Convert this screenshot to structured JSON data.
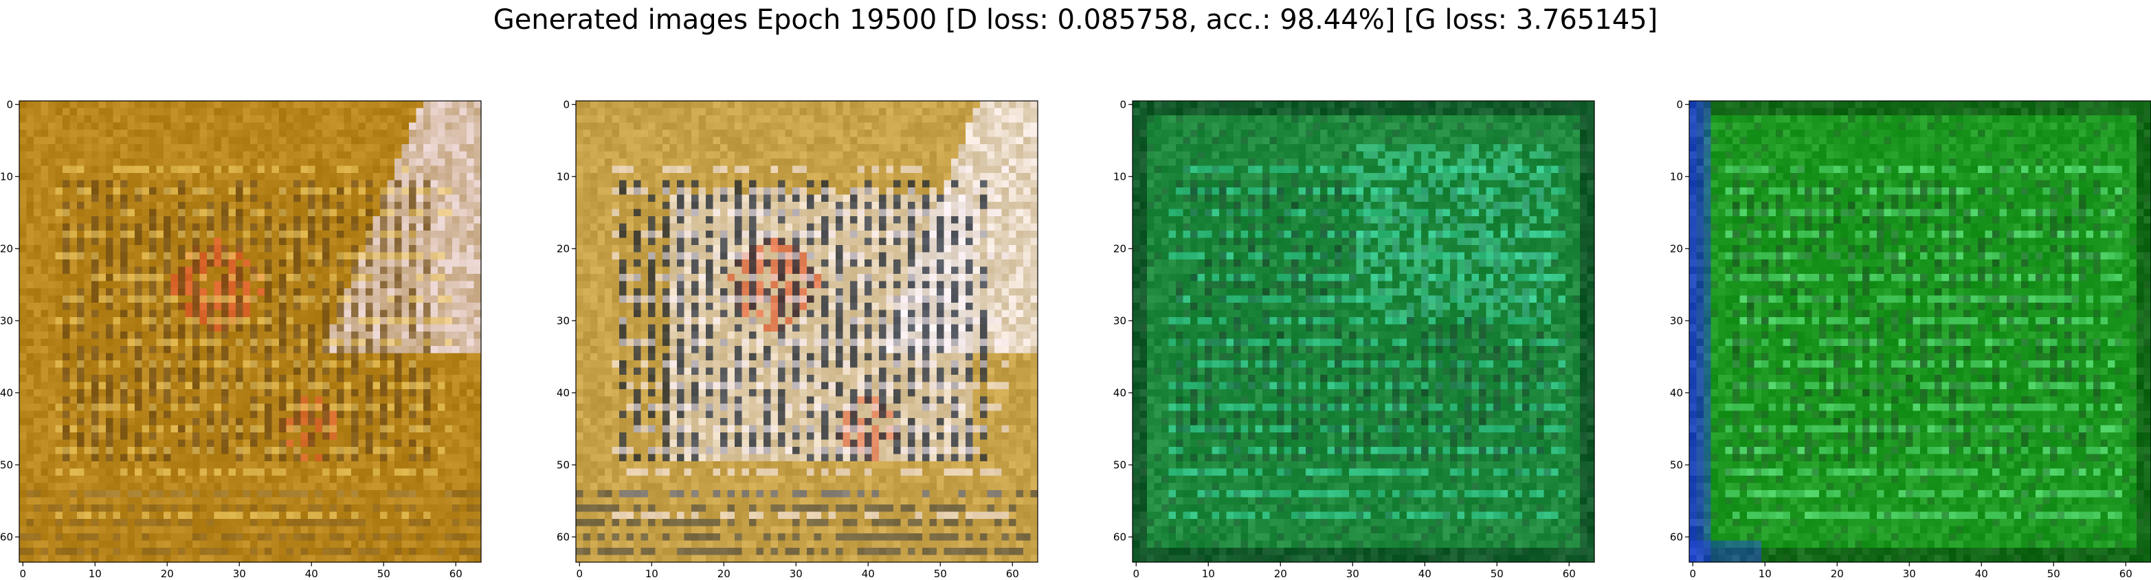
{
  "figure": {
    "suptitle": "Generated images Epoch 19500 [D loss: 0.085758, acc.: 98.44%] [G loss: 3.765145]"
  },
  "chart_data": [
    {
      "type": "heatmap",
      "xlim": [
        -0.5,
        63.5
      ],
      "ylim": [
        63.5,
        -0.5
      ],
      "xticks": [
        0,
        10,
        20,
        30,
        40,
        50,
        60
      ],
      "yticks": [
        0,
        10,
        20,
        30,
        40,
        50,
        60
      ],
      "grid": false,
      "colors": {
        "base": "#b8861c",
        "light": "#e6c15a",
        "dark": "#6e4a12",
        "accent": "#e2512a",
        "highlight": "#e8d9ea"
      }
    },
    {
      "type": "heatmap",
      "xlim": [
        -0.5,
        63.5
      ],
      "ylim": [
        63.5,
        -0.5
      ],
      "xticks": [
        0,
        10,
        20,
        30,
        40,
        50,
        60
      ],
      "yticks": [
        0,
        10,
        20,
        30,
        40,
        50,
        60
      ],
      "grid": false,
      "colors": {
        "base": "#c9a34a",
        "light": "#efe3e8",
        "dark": "#1c2430",
        "accent": "#e05a2c",
        "highlight": "#f4eef6"
      }
    },
    {
      "type": "heatmap",
      "xlim": [
        -0.5,
        63.5
      ],
      "ylim": [
        63.5,
        -0.5
      ],
      "xticks": [
        0,
        10,
        20,
        30,
        40,
        50,
        60
      ],
      "yticks": [
        0,
        10,
        20,
        30,
        40,
        50,
        60
      ],
      "grid": false,
      "colors": {
        "base": "#1f8a3e",
        "light": "#2fc58a",
        "dark": "#0c3d1f",
        "accent": "#27b77a",
        "highlight": "#3fd6a0"
      }
    },
    {
      "type": "heatmap",
      "xlim": [
        -0.5,
        63.5
      ],
      "ylim": [
        63.5,
        -0.5
      ],
      "xticks": [
        0,
        10,
        20,
        30,
        40,
        50,
        60
      ],
      "yticks": [
        0,
        10,
        20,
        30,
        40,
        50,
        60
      ],
      "grid": false,
      "colors": {
        "base": "#1e9a22",
        "light": "#4ed36a",
        "dark": "#0d4a12",
        "accent": "#2244d8",
        "highlight": "#68e07a"
      }
    }
  ]
}
